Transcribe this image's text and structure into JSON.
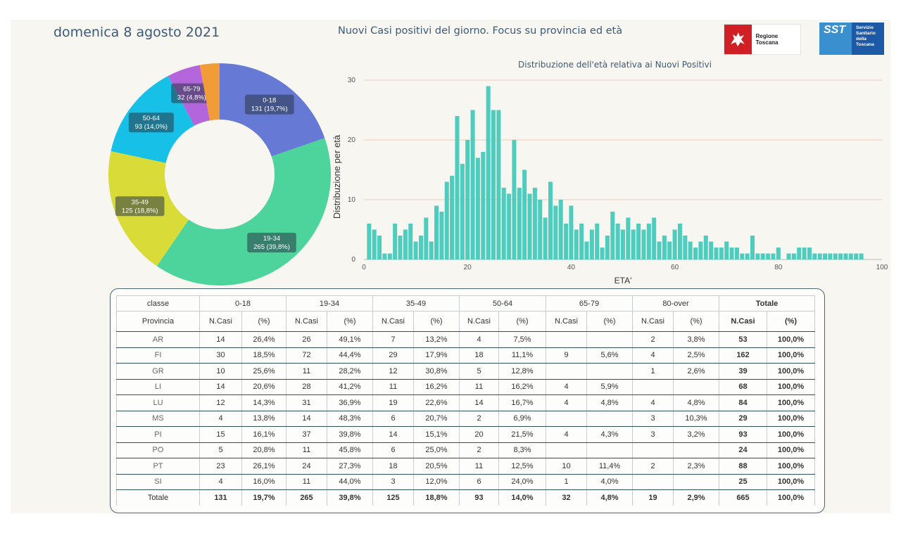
{
  "header": {
    "date": "domenica 8 agosto 2021",
    "title": "Nuovi Casi positivi del giorno. Focus su provincia ed età",
    "logo_rt_text": "Regione Toscana",
    "logo_sst_mark": "SST",
    "logo_sst_text": "Servizio Sanitario della Toscana"
  },
  "colors": {
    "panel": "#f8f6f0",
    "bar": "#4ecdbf",
    "grid": "#f0c8b8"
  },
  "chart_data": [
    {
      "type": "pie",
      "subtype": "donut",
      "slices": [
        {
          "label": "0-18",
          "value": 131,
          "text": "131 (19,7%)",
          "color": "#6679d4"
        },
        {
          "label": "19-34",
          "value": 265,
          "text": "265 (39,8%)",
          "color": "#4cd49c"
        },
        {
          "label": "35-49",
          "value": 125,
          "text": "125 (18,8%)",
          "color": "#d9dc38"
        },
        {
          "label": "50-64",
          "value": 93,
          "text": "93 (14,0%)",
          "color": "#17c0e6"
        },
        {
          "label": "65-79",
          "value": 32,
          "text": "32 (4,8%)",
          "color": "#b366dc"
        },
        {
          "label": "80-over",
          "value": 19,
          "text": "",
          "color": "#f29c38"
        }
      ]
    },
    {
      "type": "bar",
      "title": "Distribuzione dell'età relativa ai Nuovi Positivi",
      "xlabel": "ETA'",
      "ylabel": "Distribuzione per età",
      "xlim": [
        0,
        100
      ],
      "ylim": [
        0,
        30
      ],
      "xticks": [
        "0",
        "20",
        "40",
        "60",
        "80",
        "100"
      ],
      "yticks": [
        "0",
        "10",
        "20",
        "30"
      ],
      "x": [
        1,
        2,
        3,
        4,
        5,
        6,
        7,
        8,
        9,
        10,
        11,
        12,
        13,
        14,
        15,
        16,
        17,
        18,
        19,
        20,
        21,
        22,
        23,
        24,
        25,
        26,
        27,
        28,
        29,
        30,
        31,
        32,
        33,
        34,
        35,
        36,
        37,
        38,
        39,
        40,
        41,
        42,
        43,
        44,
        45,
        46,
        47,
        48,
        49,
        50,
        51,
        52,
        53,
        54,
        55,
        56,
        57,
        58,
        59,
        60,
        61,
        62,
        63,
        64,
        65,
        66,
        67,
        68,
        69,
        70,
        71,
        72,
        73,
        74,
        75,
        76,
        77,
        78,
        79,
        80,
        81,
        82,
        83,
        84,
        85,
        86,
        87,
        88,
        89,
        90,
        91,
        92,
        93,
        94,
        95,
        96
      ],
      "values": [
        6,
        5,
        4,
        1,
        1,
        6,
        4,
        5,
        6,
        3,
        4,
        7,
        3,
        9,
        8,
        13,
        14,
        24,
        16,
        20,
        25,
        17,
        18,
        29,
        25,
        25,
        12,
        11,
        20,
        12,
        15,
        11,
        12,
        10,
        7,
        13,
        9,
        10,
        6,
        9,
        5,
        6,
        3,
        5,
        6,
        2,
        4,
        8,
        6,
        5,
        7,
        5,
        6,
        5,
        6,
        7,
        3,
        4,
        3,
        5,
        6,
        4,
        3,
        2,
        3,
        4,
        3,
        2,
        2,
        3,
        2,
        2,
        1,
        1,
        4,
        1,
        1,
        1,
        1,
        2,
        0,
        1,
        1,
        2,
        2,
        2,
        1,
        1,
        1,
        1,
        1,
        1,
        1,
        1,
        1,
        1
      ]
    }
  ],
  "table": {
    "group_header": {
      "label": "classe",
      "groups": [
        "0-18",
        "19-34",
        "35-49",
        "50-64",
        "65-79",
        "80-over"
      ],
      "total": "Totale"
    },
    "sub_header": {
      "label": "Provincia",
      "ncasi": "N.Casi",
      "pct": "(%)"
    },
    "rows": [
      {
        "prov": "AR",
        "cells": [
          "14",
          "26,4%",
          "26",
          "49,1%",
          "7",
          "13,2%",
          "4",
          "7,5%",
          "",
          "",
          "2",
          "3,8%"
        ],
        "total": [
          "53",
          "100,0%"
        ]
      },
      {
        "prov": "FI",
        "cells": [
          "30",
          "18,5%",
          "72",
          "44,4%",
          "29",
          "17,9%",
          "18",
          "11,1%",
          "9",
          "5,6%",
          "4",
          "2,5%"
        ],
        "total": [
          "162",
          "100,0%"
        ]
      },
      {
        "prov": "GR",
        "cells": [
          "10",
          "25,6%",
          "11",
          "28,2%",
          "12",
          "30,8%",
          "5",
          "12,8%",
          "",
          "",
          "1",
          "2,6%"
        ],
        "total": [
          "39",
          "100,0%"
        ]
      },
      {
        "prov": "LI",
        "cells": [
          "14",
          "20,6%",
          "28",
          "41,2%",
          "11",
          "16,2%",
          "11",
          "16,2%",
          "4",
          "5,9%",
          "",
          ""
        ],
        "total": [
          "68",
          "100,0%"
        ]
      },
      {
        "prov": "LU",
        "cells": [
          "12",
          "14,3%",
          "31",
          "36,9%",
          "19",
          "22,6%",
          "14",
          "16,7%",
          "4",
          "4,8%",
          "4",
          "4,8%"
        ],
        "total": [
          "84",
          "100,0%"
        ]
      },
      {
        "prov": "MS",
        "cells": [
          "4",
          "13,8%",
          "14",
          "48,3%",
          "6",
          "20,7%",
          "2",
          "6,9%",
          "",
          "",
          "3",
          "10,3%"
        ],
        "total": [
          "29",
          "100,0%"
        ]
      },
      {
        "prov": "PI",
        "cells": [
          "15",
          "16,1%",
          "37",
          "39,8%",
          "14",
          "15,1%",
          "20",
          "21,5%",
          "4",
          "4,3%",
          "3",
          "3,2%"
        ],
        "total": [
          "93",
          "100,0%"
        ]
      },
      {
        "prov": "PO",
        "cells": [
          "5",
          "20,8%",
          "11",
          "45,8%",
          "6",
          "25,0%",
          "2",
          "8,3%",
          "",
          "",
          "",
          ""
        ],
        "total": [
          "24",
          "100,0%"
        ]
      },
      {
        "prov": "PT",
        "cells": [
          "23",
          "26,1%",
          "24",
          "27,3%",
          "18",
          "20,5%",
          "11",
          "12,5%",
          "10",
          "11,4%",
          "2",
          "2,3%"
        ],
        "total": [
          "88",
          "100,0%"
        ]
      },
      {
        "prov": "SI",
        "cells": [
          "4",
          "16,0%",
          "11",
          "44,0%",
          "3",
          "12,0%",
          "6",
          "24,0%",
          "1",
          "4,0%",
          "",
          ""
        ],
        "total": [
          "25",
          "100,0%"
        ]
      }
    ],
    "total_row": {
      "prov": "Totale",
      "cells": [
        "131",
        "19,7%",
        "265",
        "39,8%",
        "125",
        "18,8%",
        "93",
        "14,0%",
        "32",
        "4,8%",
        "19",
        "2,9%"
      ],
      "total": [
        "665",
        "100,0%"
      ]
    }
  }
}
